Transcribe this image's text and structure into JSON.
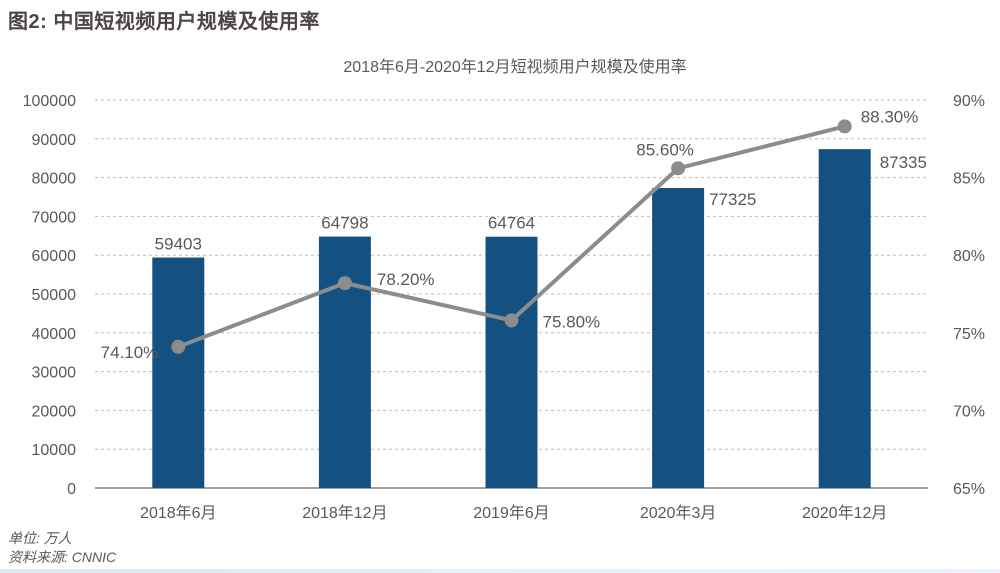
{
  "figure": {
    "heading": "图2: 中国短视频用户规模及使用率",
    "footer": {
      "unit": "单位: 万人",
      "source": "资料来源: CNNIC"
    }
  },
  "chart_data": {
    "type": "bar",
    "subtype": "combo-bar-line-dual-axis",
    "title": "2018年6月-2020年12月短视频用户规模及使用率",
    "categories": [
      "2018年6月",
      "2018年12月",
      "2019年6月",
      "2020年3月",
      "2020年12月"
    ],
    "series": [
      {
        "id": "user-scale-bars",
        "type": "bar",
        "axis": "left",
        "values": [
          59403,
          64798,
          64764,
          77325,
          87335
        ],
        "labels": [
          "59403",
          "64798",
          "64764",
          "77325",
          "87335"
        ]
      },
      {
        "id": "usage-rate-line",
        "type": "line",
        "axis": "right",
        "values": [
          74.1,
          78.2,
          75.8,
          85.6,
          88.3
        ],
        "labels": [
          "74.10%",
          "78.20%",
          "75.80%",
          "85.60%",
          "88.30%"
        ]
      }
    ],
    "left_axis": {
      "min": 0,
      "max": 100000,
      "step": 10000,
      "tick_labels": [
        "0",
        "10000",
        "20000",
        "30000",
        "40000",
        "50000",
        "60000",
        "70000",
        "80000",
        "90000",
        "100000"
      ]
    },
    "right_axis": {
      "min": 65,
      "max": 90,
      "step": 5,
      "tick_labels": [
        "65%",
        "70%",
        "75%",
        "80%",
        "85%",
        "90%"
      ]
    },
    "grid": "horizontal-dashed",
    "legend": "none"
  },
  "colors": {
    "bar": "#155180",
    "line": "#8c8c8c",
    "marker": "#8c8c8c",
    "data_label": "#595959",
    "tick_label": "#595959",
    "gridline": "#bfbfbf",
    "axis_line": "#808080",
    "heading": "#4e4444"
  }
}
